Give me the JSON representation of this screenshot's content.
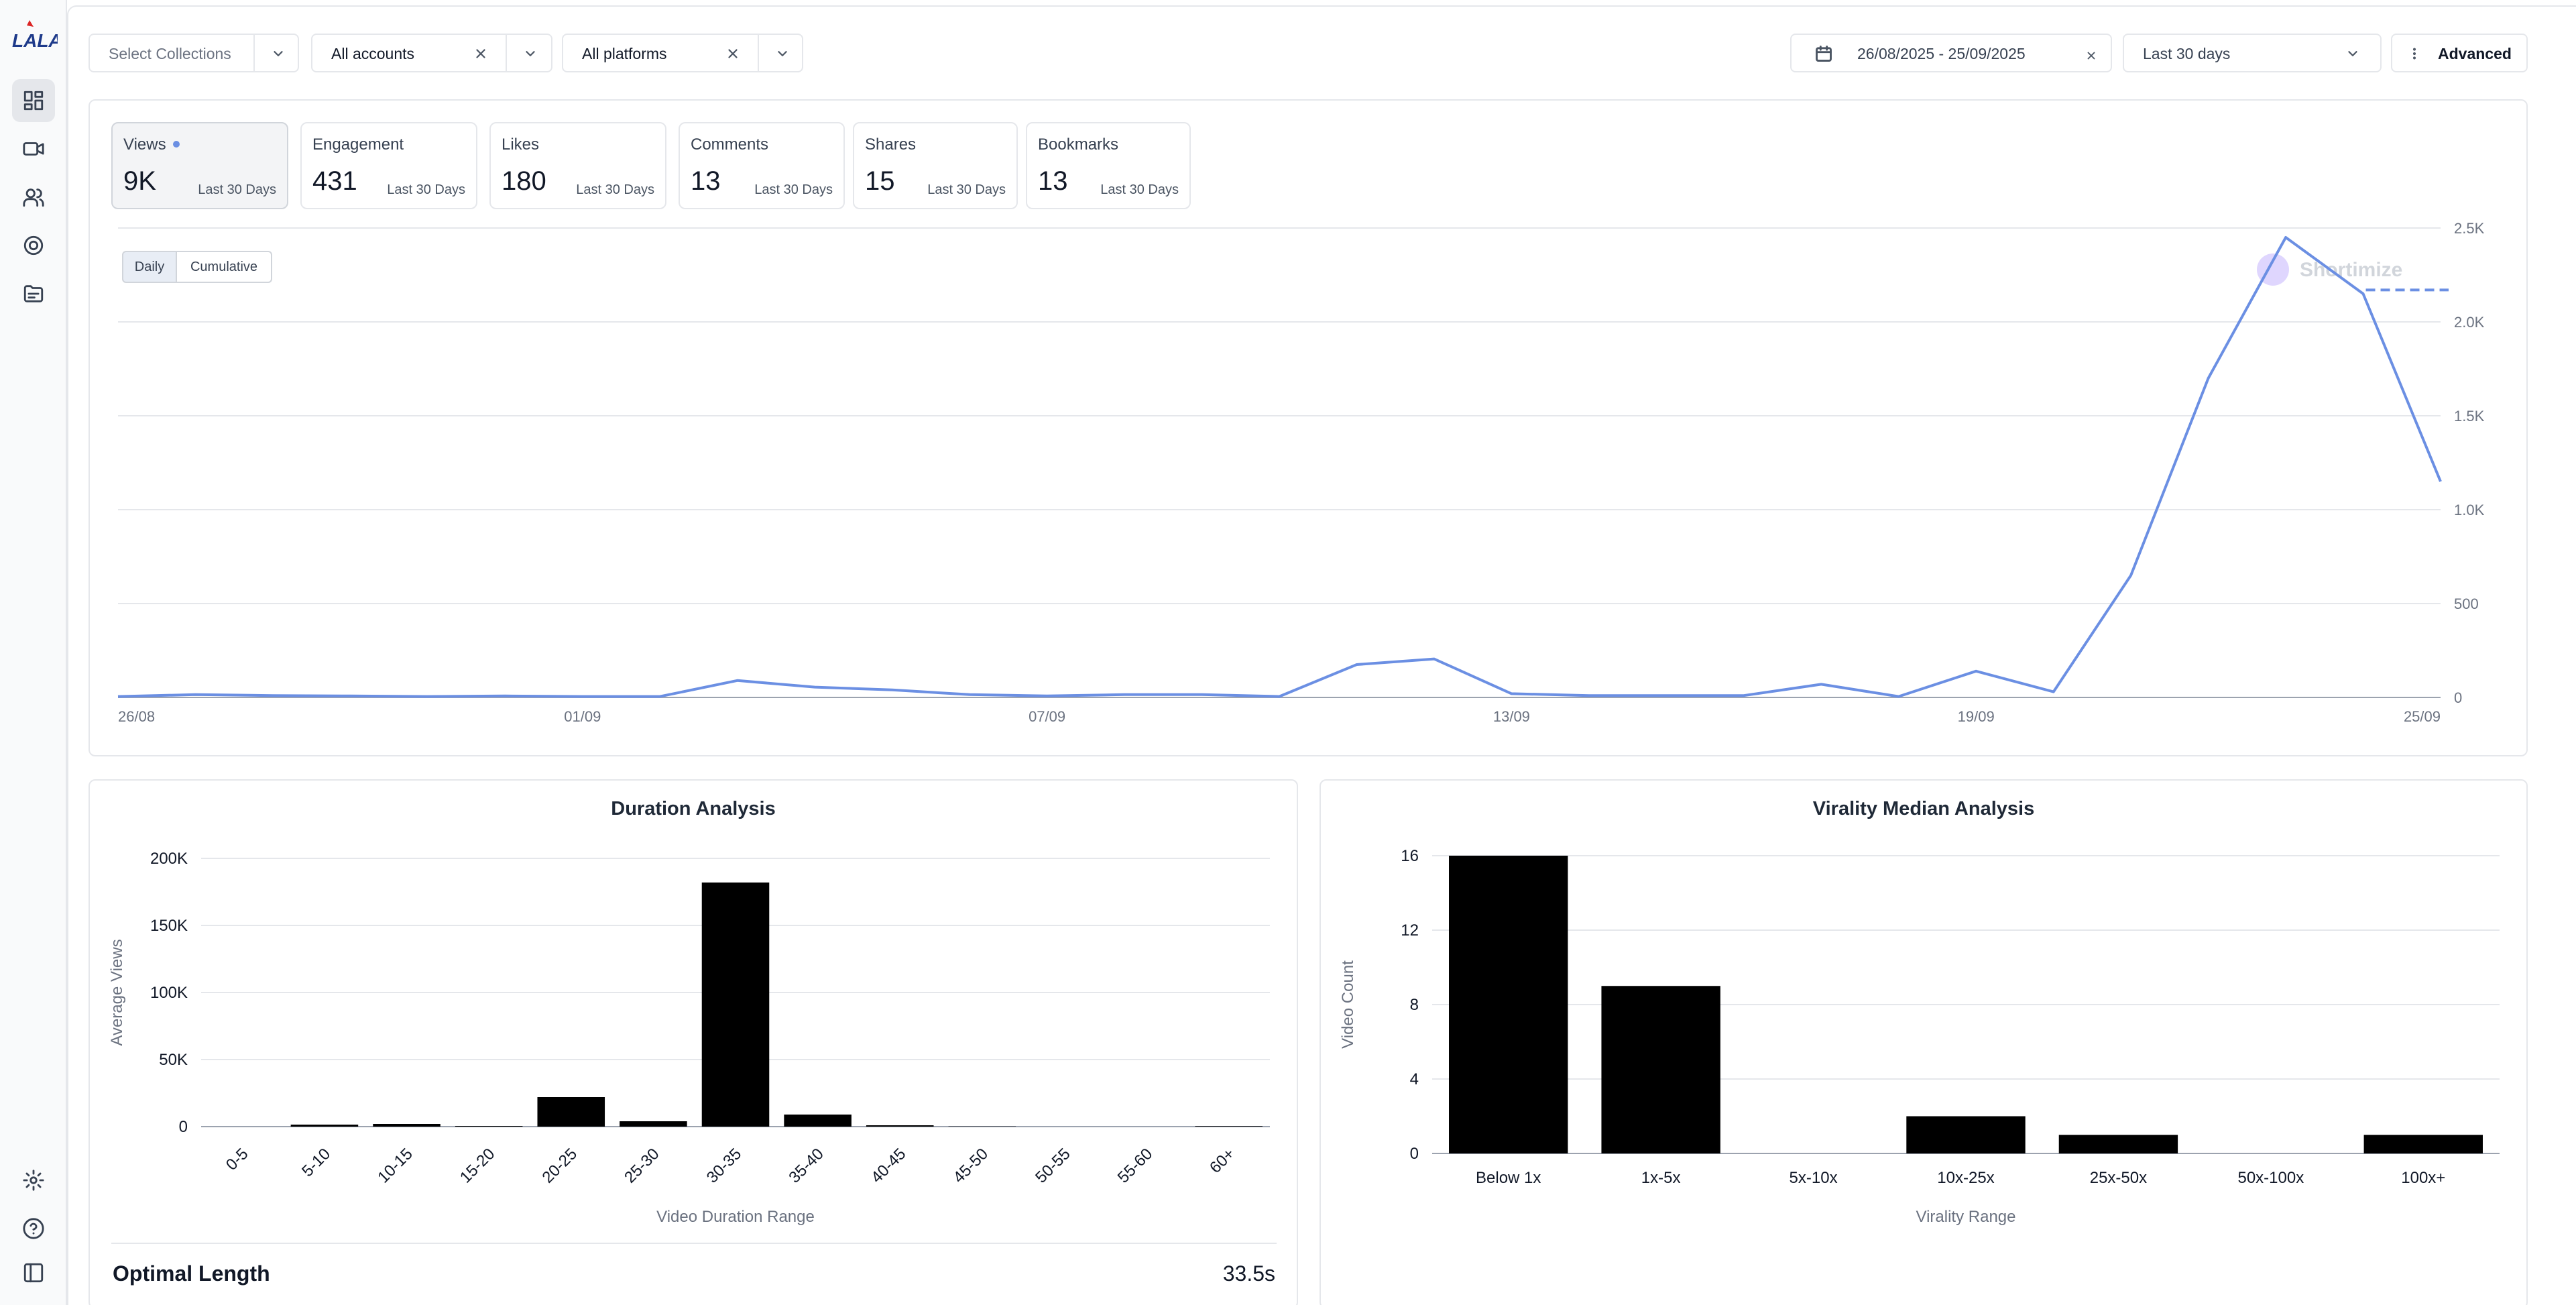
{
  "app": {
    "logo_text": "LALA"
  },
  "sidebar": {
    "top_items": [
      {
        "name": "dashboard",
        "icon": "dashboard-icon",
        "active": true
      },
      {
        "name": "videos",
        "icon": "video-camera-icon"
      },
      {
        "name": "accounts",
        "icon": "users-icon"
      },
      {
        "name": "tracking",
        "icon": "target-icon"
      },
      {
        "name": "collections",
        "icon": "folder-icon"
      }
    ],
    "bottom_items": [
      {
        "name": "settings",
        "icon": "gear-icon"
      },
      {
        "name": "help",
        "icon": "help-circle-icon"
      },
      {
        "name": "toggle-sidebar",
        "icon": "sidebar-toggle-icon"
      }
    ]
  },
  "filters": {
    "collections_label": "Select Collections",
    "accounts_label": "All accounts",
    "platforms_label": "All platforms",
    "date_range": "26/08/2025 - 25/09/2025",
    "period_label": "Last 30 days",
    "advanced_label": "Advanced"
  },
  "metrics": [
    {
      "label": "Views",
      "value": "9K",
      "period": "Last 30 Days",
      "active": true
    },
    {
      "label": "Engagement",
      "value": "431",
      "period": "Last 30 Days"
    },
    {
      "label": "Likes",
      "value": "180",
      "period": "Last 30 Days"
    },
    {
      "label": "Comments",
      "value": "13",
      "period": "Last 30 Days"
    },
    {
      "label": "Shares",
      "value": "15",
      "period": "Last 30 Days"
    },
    {
      "label": "Bookmarks",
      "value": "13",
      "period": "Last 30 Days"
    }
  ],
  "view_modes": {
    "daily": "Daily",
    "cumulative": "Cumulative",
    "selected": "Daily"
  },
  "watermark": "Shortimize",
  "colors": {
    "line": "#6b8fe3",
    "bar": "#000000",
    "grid": "#e5e7eb",
    "axis_text": "#6b7280"
  },
  "chart_data": [
    {
      "type": "line",
      "x_ticks": [
        "26/08",
        "01/09",
        "07/09",
        "13/09",
        "19/09",
        "25/09"
      ],
      "y_ticks": [
        "0",
        "500",
        "1.0K",
        "1.5K",
        "2.0K",
        "2.5K"
      ],
      "ylim": [
        0,
        2500
      ],
      "x": [
        "26/08",
        "27/08",
        "28/08",
        "29/08",
        "30/08",
        "31/08",
        "01/09",
        "02/09",
        "03/09",
        "04/09",
        "05/09",
        "06/09",
        "07/09",
        "08/09",
        "09/09",
        "10/09",
        "11/09",
        "12/09",
        "13/09",
        "14/09",
        "15/09",
        "16/09",
        "17/09",
        "18/09",
        "19/09",
        "20/09",
        "21/09",
        "22/09",
        "23/09",
        "24/09",
        "25/09"
      ],
      "series": [
        {
          "values": [
            5,
            15,
            10,
            8,
            5,
            8,
            5,
            5,
            90,
            55,
            40,
            15,
            8,
            15,
            15,
            5,
            175,
            205,
            20,
            10,
            10,
            10,
            70,
            5,
            140,
            30,
            650,
            1700,
            2450,
            2150,
            1150
          ],
          "projection": 2170
        }
      ],
      "grid": true
    },
    {
      "type": "bar",
      "title": "Duration Analysis",
      "xlabel": "Video Duration Range",
      "ylabel": "Average Views",
      "categories": [
        "0-5",
        "5-10",
        "10-15",
        "15-20",
        "20-25",
        "25-30",
        "30-35",
        "35-40",
        "40-45",
        "45-50",
        "50-55",
        "55-60",
        "60+"
      ],
      "values": [
        0,
        1500,
        2000,
        500,
        22000,
        4000,
        182000,
        9000,
        1000,
        200,
        0,
        0,
        400
      ],
      "y_ticks": [
        "0",
        "50K",
        "100K",
        "150K",
        "200K"
      ],
      "ylim": [
        0,
        200000
      ],
      "grid": true
    },
    {
      "type": "bar",
      "title": "Virality Median Analysis",
      "xlabel": "Virality Range",
      "ylabel": "Video Count",
      "categories": [
        "Below 1x",
        "1x-5x",
        "5x-10x",
        "10x-25x",
        "25x-50x",
        "50x-100x",
        "100x+"
      ],
      "values": [
        16,
        9,
        0,
        2,
        1,
        0,
        1
      ],
      "y_ticks": [
        "0",
        "4",
        "8",
        "12",
        "16"
      ],
      "ylim": [
        0,
        16
      ],
      "grid": true
    }
  ],
  "optimal": {
    "label": "Optimal Length",
    "value": "33.5s"
  }
}
